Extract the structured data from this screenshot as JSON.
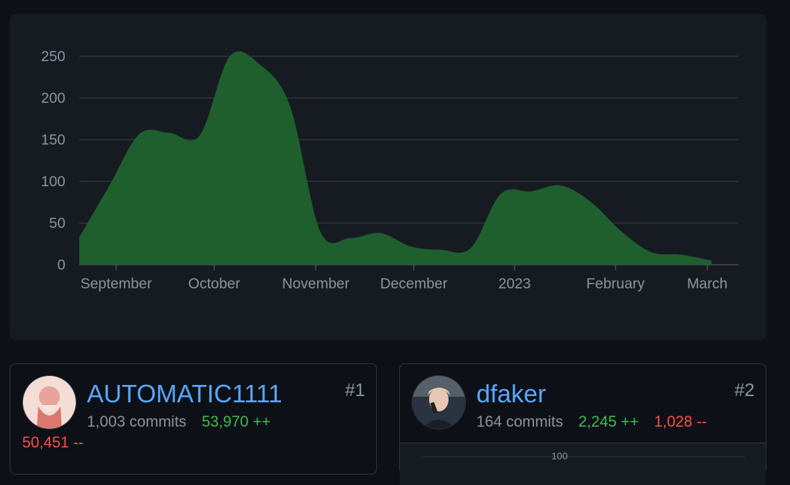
{
  "chart_data": {
    "type": "area",
    "x_tick_labels": [
      "September",
      "October",
      "November",
      "December",
      "2023",
      "February",
      "March"
    ],
    "y_ticks": [
      0,
      50,
      100,
      150,
      200,
      250
    ],
    "ylim": [
      0,
      270
    ],
    "grid": true,
    "color": "#1f5f2e",
    "x_weeks": [
      0,
      1,
      2,
      3,
      4,
      5,
      6,
      7,
      8,
      9,
      10,
      11,
      12,
      13,
      14,
      15,
      16,
      17,
      18,
      19,
      20,
      21,
      22,
      23,
      24,
      25,
      26,
      27,
      28,
      29
    ],
    "values": [
      33,
      95,
      157,
      158,
      155,
      250,
      240,
      190,
      40,
      32,
      38,
      22,
      18,
      20,
      85,
      88,
      95,
      75,
      40,
      15,
      12,
      5,
      0,
      0,
      0,
      0,
      0,
      0,
      0,
      0
    ]
  },
  "contributors": [
    {
      "username": "AUTOMATIC1111",
      "rank": "#1",
      "commits": "1,003 commits",
      "additions": "53,970 ++",
      "deletions": "50,451 --"
    },
    {
      "username": "dfaker",
      "rank": "#2",
      "commits": "164 commits",
      "additions": "2,245 ++",
      "deletions": "1,028 --",
      "mini_chart_label": "100"
    }
  ],
  "colors": {
    "link": "#58a6ff",
    "additions": "#3fb950",
    "deletions": "#f85149",
    "area": "#1f5f2e"
  }
}
